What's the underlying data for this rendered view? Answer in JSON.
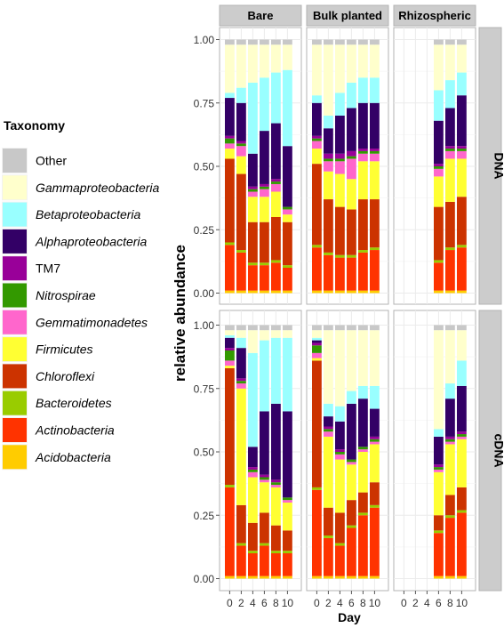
{
  "chart_data": {
    "type": "bar",
    "stacked": true,
    "x_axis_label": "Day",
    "y_axis_label": "relative abundance",
    "legend_title": "Taxonomy",
    "legend_placement": "left",
    "x_ticks": [
      "0",
      "2",
      "4",
      "6",
      "8",
      "10"
    ],
    "y_ticks": [
      "0.00",
      "0.25",
      "0.50",
      "0.75",
      "1.00"
    ],
    "ylim": [
      0,
      1
    ],
    "grid": true,
    "facet_columns": [
      "Bare",
      "Bulk planted",
      "Rhizospheric"
    ],
    "facet_rows": [
      "DNA",
      "cDNA"
    ],
    "legend": [
      {
        "name": "Other",
        "color": "#c8c8c8",
        "italic": false
      },
      {
        "name": "Gammaproteobacteria",
        "color": "#ffffcc",
        "italic": true
      },
      {
        "name": "Betaproteobacteria",
        "color": "#99ffff",
        "italic": true
      },
      {
        "name": "Alphaproteobacteria",
        "color": "#330066",
        "italic": true
      },
      {
        "name": "TM7",
        "color": "#990099",
        "italic": false
      },
      {
        "name": "Nitrospirae",
        "color": "#339900",
        "italic": true
      },
      {
        "name": "Gemmatimonadetes",
        "color": "#ff66cc",
        "italic": true
      },
      {
        "name": "Firmicutes",
        "color": "#ffff33",
        "italic": true
      },
      {
        "name": "Chloroflexi",
        "color": "#cc3300",
        "italic": true
      },
      {
        "name": "Bacteroidetes",
        "color": "#99cc00",
        "italic": true
      },
      {
        "name": "Actinobacteria",
        "color": "#ff3300",
        "italic": true
      },
      {
        "name": "Acidobacteria",
        "color": "#ffcc00",
        "italic": true
      }
    ],
    "stack_order_bottom_to_top": [
      "Acidobacteria",
      "Actinobacteria",
      "Bacteroidetes",
      "Chloroflexi",
      "Firmicutes",
      "Gemmatimonadetes",
      "Nitrospirae",
      "TM7",
      "Alphaproteobacteria",
      "Betaproteobacteria",
      "Gammaproteobacteria",
      "Other"
    ],
    "panels": [
      {
        "row": "DNA",
        "col": "Bare",
        "bars": [
          {
            "day": "0",
            "cum": [
              0.01,
              0.19,
              0.2,
              0.53,
              0.57,
              0.59,
              0.61,
              0.62,
              0.77,
              0.79,
              0.98,
              1.0
            ]
          },
          {
            "day": "2",
            "cum": [
              0.01,
              0.16,
              0.17,
              0.47,
              0.54,
              0.58,
              0.59,
              0.6,
              0.75,
              0.81,
              0.98,
              1.0
            ]
          },
          {
            "day": "4",
            "cum": [
              0.01,
              0.11,
              0.12,
              0.28,
              0.38,
              0.4,
              0.41,
              0.42,
              0.55,
              0.83,
              0.98,
              1.0
            ]
          },
          {
            "day": "6",
            "cum": [
              0.01,
              0.11,
              0.12,
              0.28,
              0.38,
              0.41,
              0.42,
              0.43,
              0.64,
              0.85,
              0.98,
              1.0
            ]
          },
          {
            "day": "8",
            "cum": [
              0.01,
              0.12,
              0.13,
              0.3,
              0.4,
              0.43,
              0.44,
              0.45,
              0.67,
              0.87,
              0.98,
              1.0
            ]
          },
          {
            "day": "10",
            "cum": [
              0.01,
              0.1,
              0.11,
              0.28,
              0.31,
              0.33,
              0.34,
              0.34,
              0.58,
              0.88,
              0.98,
              1.0
            ]
          }
        ]
      },
      {
        "row": "DNA",
        "col": "Bulk planted",
        "bars": [
          {
            "day": "0",
            "cum": [
              0.01,
              0.18,
              0.19,
              0.51,
              0.57,
              0.6,
              0.61,
              0.62,
              0.75,
              0.78,
              0.98,
              1.0
            ]
          },
          {
            "day": "2",
            "cum": [
              0.01,
              0.15,
              0.16,
              0.37,
              0.48,
              0.52,
              0.53,
              0.55,
              0.65,
              0.7,
              0.98,
              1.0
            ]
          },
          {
            "day": "4",
            "cum": [
              0.01,
              0.14,
              0.15,
              0.34,
              0.47,
              0.52,
              0.53,
              0.55,
              0.7,
              0.79,
              0.98,
              1.0
            ]
          },
          {
            "day": "6",
            "cum": [
              0.01,
              0.14,
              0.15,
              0.33,
              0.45,
              0.53,
              0.54,
              0.56,
              0.73,
              0.83,
              0.98,
              1.0
            ]
          },
          {
            "day": "8",
            "cum": [
              0.01,
              0.16,
              0.17,
              0.37,
              0.52,
              0.55,
              0.56,
              0.57,
              0.75,
              0.85,
              0.98,
              1.0
            ]
          },
          {
            "day": "10",
            "cum": [
              0.01,
              0.17,
              0.18,
              0.37,
              0.52,
              0.55,
              0.56,
              0.57,
              0.75,
              0.85,
              0.98,
              1.0
            ]
          }
        ]
      },
      {
        "row": "DNA",
        "col": "Rhizospheric",
        "bars": [
          null,
          null,
          null,
          {
            "day": "6",
            "cum": [
              0.01,
              0.12,
              0.13,
              0.34,
              0.46,
              0.49,
              0.5,
              0.51,
              0.68,
              0.8,
              0.98,
              1.0
            ]
          },
          {
            "day": "8",
            "cum": [
              0.01,
              0.17,
              0.18,
              0.36,
              0.53,
              0.56,
              0.57,
              0.58,
              0.73,
              0.84,
              0.98,
              1.0
            ]
          },
          {
            "day": "10",
            "cum": [
              0.01,
              0.18,
              0.19,
              0.38,
              0.53,
              0.56,
              0.57,
              0.58,
              0.78,
              0.87,
              0.98,
              1.0
            ]
          }
        ]
      },
      {
        "row": "cDNA",
        "col": "Bare",
        "bars": [
          {
            "day": "0",
            "cum": [
              0.01,
              0.36,
              0.37,
              0.83,
              0.84,
              0.86,
              0.9,
              0.91,
              0.95,
              0.96,
              0.98,
              1.0
            ]
          },
          {
            "day": "2",
            "cum": [
              0.01,
              0.13,
              0.14,
              0.29,
              0.75,
              0.77,
              0.78,
              0.79,
              0.91,
              0.95,
              0.98,
              1.0
            ]
          },
          {
            "day": "4",
            "cum": [
              0.01,
              0.1,
              0.11,
              0.22,
              0.4,
              0.42,
              0.43,
              0.44,
              0.52,
              0.89,
              0.98,
              1.0
            ]
          },
          {
            "day": "6",
            "cum": [
              0.01,
              0.13,
              0.14,
              0.26,
              0.38,
              0.39,
              0.4,
              0.41,
              0.66,
              0.94,
              0.98,
              1.0
            ]
          },
          {
            "day": "8",
            "cum": [
              0.01,
              0.1,
              0.11,
              0.21,
              0.36,
              0.37,
              0.38,
              0.39,
              0.69,
              0.95,
              0.98,
              1.0
            ]
          },
          {
            "day": "10",
            "cum": [
              0.01,
              0.1,
              0.11,
              0.19,
              0.3,
              0.31,
              0.32,
              0.32,
              0.66,
              0.95,
              0.98,
              1.0
            ]
          }
        ]
      },
      {
        "row": "cDNA",
        "col": "Bulk planted",
        "bars": [
          {
            "day": "0",
            "cum": [
              0.01,
              0.35,
              0.36,
              0.86,
              0.87,
              0.89,
              0.92,
              0.93,
              0.94,
              0.95,
              0.98,
              1.0
            ]
          },
          {
            "day": "2",
            "cum": [
              0.01,
              0.16,
              0.17,
              0.28,
              0.56,
              0.58,
              0.59,
              0.6,
              0.64,
              0.69,
              0.98,
              1.0
            ]
          },
          {
            "day": "4",
            "cum": [
              0.01,
              0.13,
              0.14,
              0.26,
              0.47,
              0.49,
              0.5,
              0.51,
              0.62,
              0.68,
              0.98,
              1.0
            ]
          },
          {
            "day": "6",
            "cum": [
              0.01,
              0.2,
              0.21,
              0.31,
              0.45,
              0.46,
              0.47,
              0.47,
              0.69,
              0.74,
              0.98,
              1.0
            ]
          },
          {
            "day": "8",
            "cum": [
              0.01,
              0.25,
              0.26,
              0.34,
              0.5,
              0.51,
              0.52,
              0.52,
              0.71,
              0.76,
              0.98,
              1.0
            ]
          },
          {
            "day": "10",
            "cum": [
              0.01,
              0.28,
              0.29,
              0.38,
              0.53,
              0.54,
              0.55,
              0.56,
              0.67,
              0.76,
              0.98,
              1.0
            ]
          }
        ]
      },
      {
        "row": "cDNA",
        "col": "Rhizospheric",
        "bars": [
          null,
          null,
          null,
          {
            "day": "6",
            "cum": [
              0.01,
              0.18,
              0.19,
              0.25,
              0.42,
              0.43,
              0.44,
              0.45,
              0.56,
              0.59,
              0.98,
              1.0
            ]
          },
          {
            "day": "8",
            "cum": [
              0.01,
              0.24,
              0.25,
              0.33,
              0.53,
              0.54,
              0.55,
              0.56,
              0.71,
              0.77,
              0.98,
              1.0
            ]
          },
          {
            "day": "10",
            "cum": [
              0.01,
              0.26,
              0.27,
              0.36,
              0.55,
              0.56,
              0.57,
              0.58,
              0.76,
              0.86,
              0.98,
              1.0
            ]
          }
        ]
      }
    ]
  }
}
